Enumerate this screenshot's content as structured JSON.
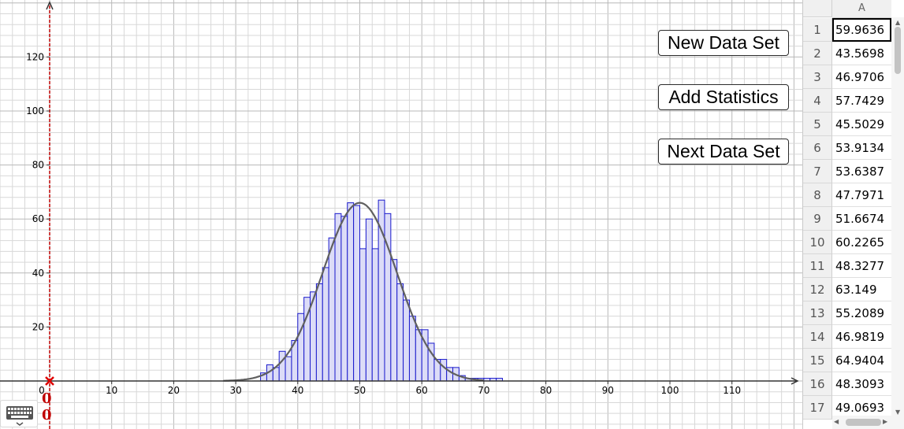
{
  "buttons": {
    "new_data_set": "New Data Set",
    "add_statistics": "Add Statistics",
    "next_data_set": "Next Data Set"
  },
  "origin_label_x": "0",
  "origin_label_y": "0",
  "colors": {
    "bar_fill": "#dcdcf7",
    "bar_stroke": "#1a1acc",
    "curve": "#606060",
    "y_axis": "#c00000",
    "grid_minor": "#d8d8d8",
    "grid_major": "#b8b8b8"
  },
  "icons": {
    "keyboard": "keyboard-icon",
    "origin_point": "x-mark-icon"
  },
  "spreadsheet": {
    "column_header": "A",
    "rows": [
      {
        "num": "1",
        "value": "59.9636"
      },
      {
        "num": "2",
        "value": "43.5698"
      },
      {
        "num": "3",
        "value": "46.9706"
      },
      {
        "num": "4",
        "value": "57.7429"
      },
      {
        "num": "5",
        "value": "45.5029"
      },
      {
        "num": "6",
        "value": "53.9134"
      },
      {
        "num": "7",
        "value": "53.6387"
      },
      {
        "num": "8",
        "value": "47.7971"
      },
      {
        "num": "9",
        "value": "51.6674"
      },
      {
        "num": "10",
        "value": "60.2265"
      },
      {
        "num": "11",
        "value": "48.3277"
      },
      {
        "num": "12",
        "value": "63.149"
      },
      {
        "num": "13",
        "value": "55.2089"
      },
      {
        "num": "14",
        "value": "46.9819"
      },
      {
        "num": "15",
        "value": "64.9404"
      },
      {
        "num": "16",
        "value": "48.3093"
      },
      {
        "num": "17",
        "value": "49.0693"
      }
    ],
    "selected_row": 1
  },
  "chart_data": {
    "type": "bar",
    "xlim": [
      -8,
      122
    ],
    "ylim": [
      -17,
      140
    ],
    "x_ticks": [
      "10",
      "20",
      "30",
      "40",
      "50",
      "60",
      "70",
      "80",
      "90",
      "100",
      "110"
    ],
    "x_zero_label": "0",
    "y_ticks": [
      "20",
      "40",
      "60",
      "80",
      "100",
      "120"
    ],
    "bin_width": 1,
    "bins": [
      {
        "x": 34,
        "h": 3
      },
      {
        "x": 35,
        "h": 6
      },
      {
        "x": 36,
        "h": 5
      },
      {
        "x": 37,
        "h": 11
      },
      {
        "x": 38,
        "h": 9
      },
      {
        "x": 39,
        "h": 15
      },
      {
        "x": 40,
        "h": 25
      },
      {
        "x": 41,
        "h": 31
      },
      {
        "x": 42,
        "h": 33
      },
      {
        "x": 43,
        "h": 36
      },
      {
        "x": 44,
        "h": 42
      },
      {
        "x": 45,
        "h": 53
      },
      {
        "x": 46,
        "h": 62
      },
      {
        "x": 47,
        "h": 61
      },
      {
        "x": 48,
        "h": 66
      },
      {
        "x": 49,
        "h": 65
      },
      {
        "x": 50,
        "h": 49
      },
      {
        "x": 51,
        "h": 60
      },
      {
        "x": 52,
        "h": 49
      },
      {
        "x": 53,
        "h": 67
      },
      {
        "x": 54,
        "h": 62
      },
      {
        "x": 55,
        "h": 45
      },
      {
        "x": 56,
        "h": 36
      },
      {
        "x": 57,
        "h": 30
      },
      {
        "x": 58,
        "h": 24
      },
      {
        "x": 59,
        "h": 19
      },
      {
        "x": 60,
        "h": 19
      },
      {
        "x": 61,
        "h": 14
      },
      {
        "x": 62,
        "h": 8
      },
      {
        "x": 63,
        "h": 8
      },
      {
        "x": 64,
        "h": 5
      },
      {
        "x": 65,
        "h": 5
      },
      {
        "x": 66,
        "h": 2
      },
      {
        "x": 67,
        "h": 1
      },
      {
        "x": 68,
        "h": 1
      },
      {
        "x": 69,
        "h": 1
      },
      {
        "x": 70,
        "h": 1
      },
      {
        "x": 71,
        "h": 1
      },
      {
        "x": 72,
        "h": 1
      }
    ],
    "normal_curve": {
      "mean": 50,
      "sd": 6,
      "peak": 66,
      "from": 28,
      "to": 70
    },
    "grid": true
  }
}
